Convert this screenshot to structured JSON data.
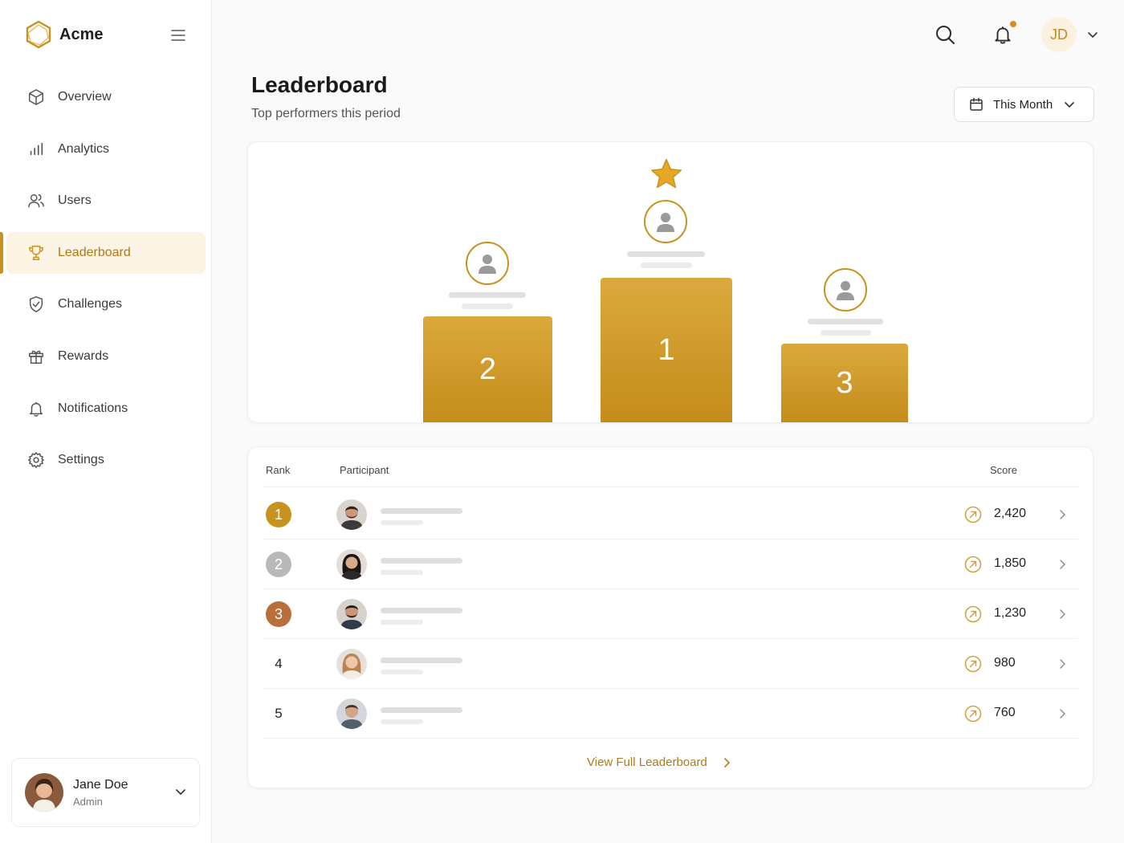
{
  "brand": {
    "name": "Acme"
  },
  "sidebar": {
    "items": [
      {
        "label": "Overview",
        "icon": "cube-icon",
        "active": false
      },
      {
        "label": "Analytics",
        "icon": "bar-chart-icon",
        "active": false
      },
      {
        "label": "Users",
        "icon": "users-icon",
        "active": false
      },
      {
        "label": "Leaderboard",
        "icon": "trophy-icon",
        "active": true
      },
      {
        "label": "Challenges",
        "icon": "shield-check-icon",
        "active": false
      },
      {
        "label": "Rewards",
        "icon": "gift-icon",
        "active": false
      },
      {
        "label": "Notifications",
        "icon": "bell-icon",
        "active": false
      },
      {
        "label": "Settings",
        "icon": "gear-icon",
        "active": false
      }
    ],
    "user": {
      "name": "Jane Doe",
      "role": "Admin"
    }
  },
  "topbar": {
    "initials": "JD"
  },
  "header": {
    "title": "Leaderboard",
    "subtitle": "Top performers this period",
    "period": "This Month"
  },
  "podium": {
    "first": "1",
    "second": "2",
    "third": "3"
  },
  "table": {
    "headers": {
      "rank": "Rank",
      "participant": "Participant",
      "score": "Score"
    },
    "rows": [
      {
        "rank": "1",
        "score": "2,420"
      },
      {
        "rank": "2",
        "score": "1,850"
      },
      {
        "rank": "3",
        "score": "1,230"
      },
      {
        "rank": "4",
        "score": "980"
      },
      {
        "rank": "5",
        "score": "760"
      }
    ],
    "view_full": "View Full Leaderboard"
  },
  "colors": {
    "accent": "#c8921e",
    "accent_text": "#b07a14",
    "active_bg": "#fbf3e4",
    "gold": "#c8921e",
    "silver": "#b9b9b9",
    "bronze": "#b86f3c"
  }
}
